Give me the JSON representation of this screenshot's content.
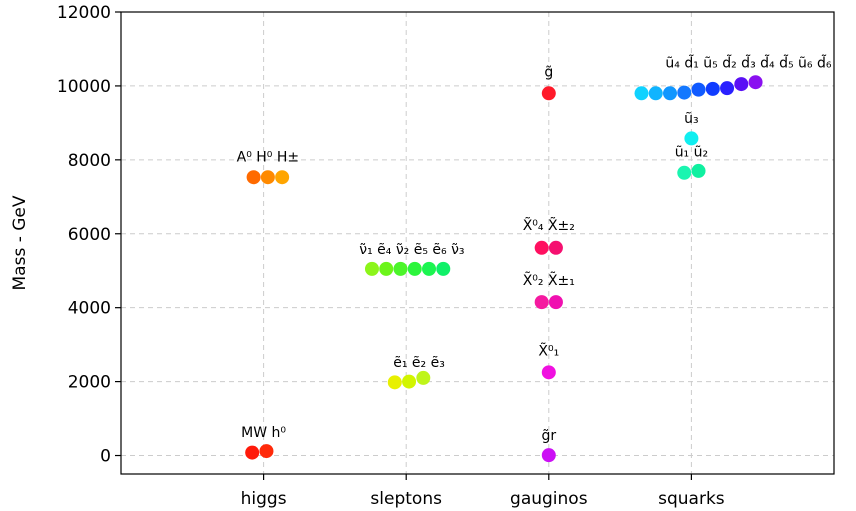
{
  "chart_data": {
    "type": "scatter",
    "ylabel": "Mass - GeV",
    "xlabel": "",
    "ylim": [
      -500,
      12000
    ],
    "grid": true,
    "categories": [
      "higgs",
      "sleptons",
      "gauginos",
      "squarks"
    ],
    "yticks": [
      "0",
      "2000",
      "4000",
      "6000",
      "8000",
      "10000",
      "12000"
    ],
    "points": [
      {
        "x": 0.92,
        "y": 80,
        "color": "#ff1a0a"
      },
      {
        "x": 1.02,
        "y": 120,
        "color": "#ff2a0a"
      },
      {
        "x": 0.93,
        "y": 7530,
        "color": "#ff6a00"
      },
      {
        "x": 1.03,
        "y": 7530,
        "color": "#ff8a00"
      },
      {
        "x": 1.13,
        "y": 7530,
        "color": "#ffa500"
      },
      {
        "x": 1.92,
        "y": 1980,
        "color": "#e8f000"
      },
      {
        "x": 2.02,
        "y": 2000,
        "color": "#d2f500"
      },
      {
        "x": 2.12,
        "y": 2100,
        "color": "#bff51a"
      },
      {
        "x": 1.76,
        "y": 5050,
        "color": "#8cf51a"
      },
      {
        "x": 1.86,
        "y": 5050,
        "color": "#6cf51a"
      },
      {
        "x": 1.96,
        "y": 5050,
        "color": "#4cf52a"
      },
      {
        "x": 2.06,
        "y": 5050,
        "color": "#2cf53c"
      },
      {
        "x": 2.16,
        "y": 5050,
        "color": "#1cf550"
      },
      {
        "x": 2.26,
        "y": 5050,
        "color": "#10f068"
      },
      {
        "x": 3.0,
        "y": 9800,
        "color": "#ff1a2a"
      },
      {
        "x": 2.95,
        "y": 5620,
        "color": "#ff1060"
      },
      {
        "x": 3.05,
        "y": 5620,
        "color": "#f51070"
      },
      {
        "x": 2.95,
        "y": 4150,
        "color": "#f51aa0"
      },
      {
        "x": 3.05,
        "y": 4150,
        "color": "#f010b0"
      },
      {
        "x": 3.0,
        "y": 2250,
        "color": "#f010e0"
      },
      {
        "x": 3.0,
        "y": 10,
        "color": "#cc10f5"
      },
      {
        "x": 3.95,
        "y": 7650,
        "color": "#1af5b0"
      },
      {
        "x": 4.05,
        "y": 7700,
        "color": "#10f0a0"
      },
      {
        "x": 4.0,
        "y": 8580,
        "color": "#10eef0"
      },
      {
        "x": 3.65,
        "y": 9800,
        "color": "#10d2ff"
      },
      {
        "x": 3.75,
        "y": 9800,
        "color": "#10b4ff"
      },
      {
        "x": 3.85,
        "y": 9800,
        "color": "#1096ff"
      },
      {
        "x": 3.95,
        "y": 9820,
        "color": "#1478ff"
      },
      {
        "x": 4.05,
        "y": 9900,
        "color": "#105aff"
      },
      {
        "x": 4.15,
        "y": 9920,
        "color": "#103cff"
      },
      {
        "x": 4.25,
        "y": 9940,
        "color": "#2a20ff"
      },
      {
        "x": 4.35,
        "y": 10050,
        "color": "#5a10f5"
      },
      {
        "x": 4.45,
        "y": 10100,
        "color": "#8a10f0"
      }
    ],
    "labels": [
      {
        "x": 1.0,
        "y": 500,
        "text": "MW h⁰"
      },
      {
        "x": 1.03,
        "y": 7950,
        "text": "A⁰ H⁰ H±"
      },
      {
        "x": 2.09,
        "y": 2400,
        "text": "ẽ₁ ẽ₂ ẽ₃"
      },
      {
        "x": 2.04,
        "y": 5450,
        "text": "ν̃₁ ẽ₄ ν̃₂ ẽ₅ ẽ₆ ν̃₃"
      },
      {
        "x": 3.0,
        "y": 10250,
        "text": "g̃"
      },
      {
        "x": 3.0,
        "y": 6100,
        "text": "X̃⁰₄ X̃±₂"
      },
      {
        "x": 3.0,
        "y": 4620,
        "text": "X̃⁰₂ X̃±₁"
      },
      {
        "x": 3.0,
        "y": 2700,
        "text": "X̃⁰₁"
      },
      {
        "x": 3.0,
        "y": 420,
        "text": "g̃r"
      },
      {
        "x": 4.0,
        "y": 8090,
        "text": "ũ₁ ũ₂"
      },
      {
        "x": 4.0,
        "y": 9000,
        "text": "ũ₃"
      },
      {
        "x": 4.4,
        "y": 10500,
        "text": "ũ₄ d̃₁ ũ₅ d̃₂ d̃₃ d̃₄ d̃₅ ũ₆ d̃₆"
      }
    ]
  }
}
